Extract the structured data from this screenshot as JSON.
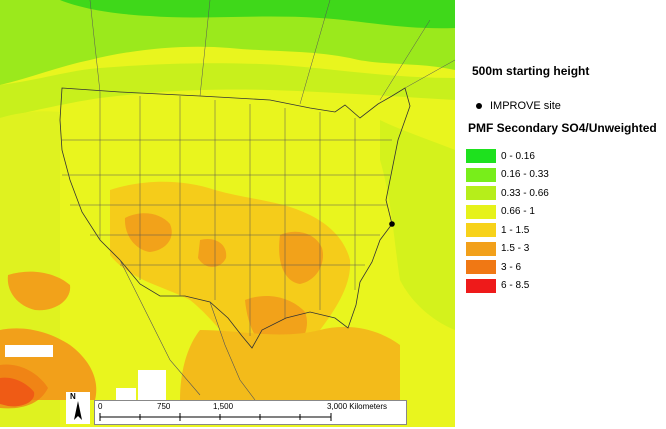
{
  "map": {
    "region": "continental United States, southern Canada, northern Mexico",
    "background_color": "#eef700",
    "ocean_color": "#f0f53a",
    "site_color": "#000000"
  },
  "legend": {
    "height_title": "500m starting height",
    "site_label": "IMPROVE site",
    "title": "PMF Secondary SO4/Unweighted",
    "classes": [
      {
        "label": "0 - 0.16",
        "color": "#1ee11e"
      },
      {
        "label": "0.16 - 0.33",
        "color": "#78ee1a"
      },
      {
        "label": "0.33 - 0.66",
        "color": "#b6ee1a"
      },
      {
        "label": "0.66 - 1",
        "color": "#e6f21a"
      },
      {
        "label": "1 - 1.5",
        "color": "#f7d21a"
      },
      {
        "label": "1.5 - 3",
        "color": "#f2a01a"
      },
      {
        "label": "3 - 6",
        "color": "#f07814"
      },
      {
        "label": "6 - 8.5",
        "color": "#ee1a1a"
      }
    ]
  },
  "north_arrow": {
    "label": "N"
  },
  "scale_bar": {
    "labels": [
      "0",
      "750",
      "1,500",
      "3,000 Kilometers"
    ]
  }
}
